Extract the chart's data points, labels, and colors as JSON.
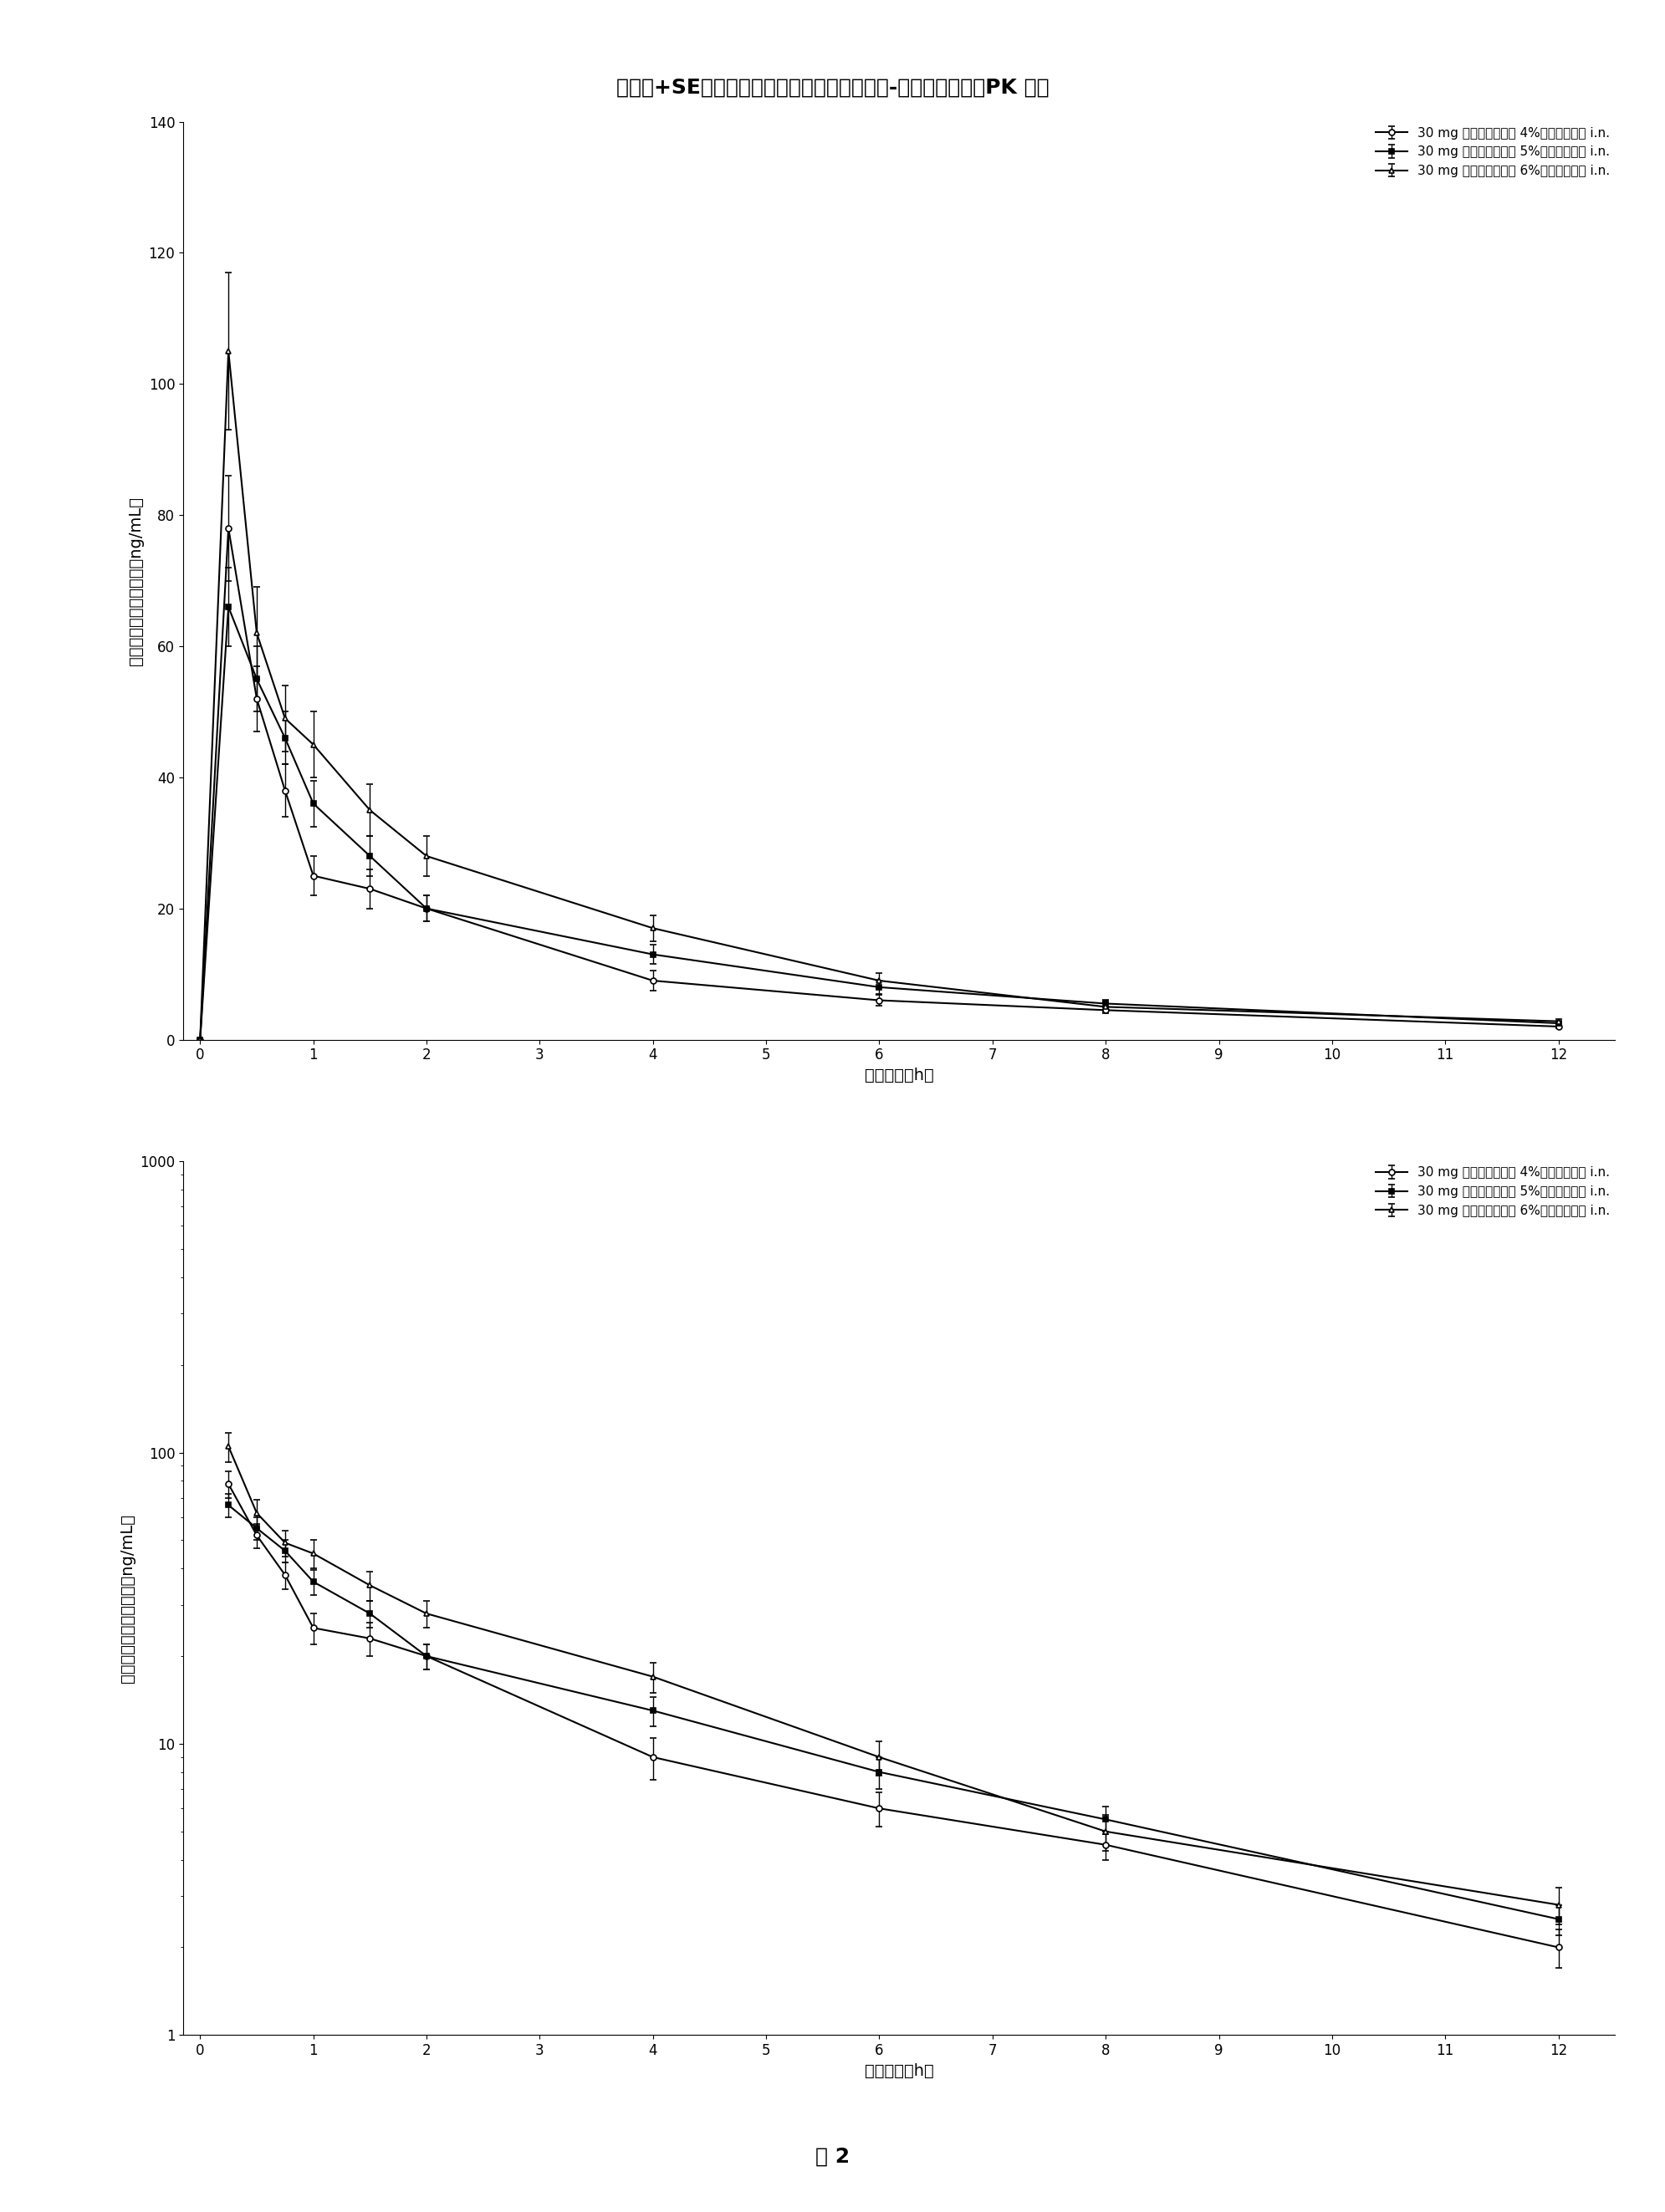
{
  "title": "平均（+SE）线性和半对数血浆利多卡因浓度-时间特性曲线：PK 群体",
  "figure_label": "图 2",
  "xlabel": "额定时间（h）",
  "ylabel": "平均盐酸利多卡因浓度（ng/mL）",
  "legend_labels": [
    "30 mg 酮咯酸丁三醇与 4%盐酸利多卡因 i.n.",
    "30 mg 酮咯酸丁三醇与 5%盐酸利多卡因 i.n.",
    "30 mg 酮咯酸丁三醇与 6%盐酸利多卡因 i.n."
  ],
  "time": [
    0,
    0.25,
    0.5,
    0.75,
    1.0,
    1.5,
    2.0,
    4.0,
    6.0,
    8.0,
    12.0
  ],
  "series1_mean": [
    0,
    78,
    52,
    38,
    25,
    23,
    20,
    9,
    6,
    4.5,
    2.0
  ],
  "series1_se": [
    0,
    8,
    5,
    4,
    3,
    3,
    2,
    1.5,
    0.8,
    0.5,
    0.3
  ],
  "series2_mean": [
    0,
    66,
    55,
    46,
    36,
    28,
    20,
    13,
    8,
    5.5,
    2.5
  ],
  "series2_se": [
    0,
    6,
    5,
    4,
    3.5,
    3,
    2,
    1.5,
    1,
    0.6,
    0.3
  ],
  "series3_mean": [
    0,
    105,
    62,
    49,
    45,
    35,
    28,
    17,
    9,
    5,
    2.8
  ],
  "series3_se": [
    0,
    12,
    7,
    5,
    5,
    4,
    3,
    2,
    1.2,
    0.7,
    0.4
  ],
  "xticks": [
    0,
    1,
    2,
    3,
    4,
    5,
    6,
    7,
    8,
    9,
    10,
    11,
    12
  ],
  "linear_ylim": [
    0,
    140
  ],
  "linear_yticks": [
    0,
    20,
    40,
    60,
    80,
    100,
    120,
    140
  ],
  "log_ylim": [
    1,
    1000
  ],
  "log_yticks": [
    1,
    10,
    100,
    1000
  ],
  "marker1": "o",
  "marker2": "s",
  "marker3": "^",
  "color": "black",
  "linewidth": 1.5,
  "markersize": 5,
  "capsize": 3,
  "font_size_title": 18,
  "font_size_labels": 14,
  "font_size_ticks": 12,
  "font_size_legend": 11,
  "font_size_fig_label": 18
}
